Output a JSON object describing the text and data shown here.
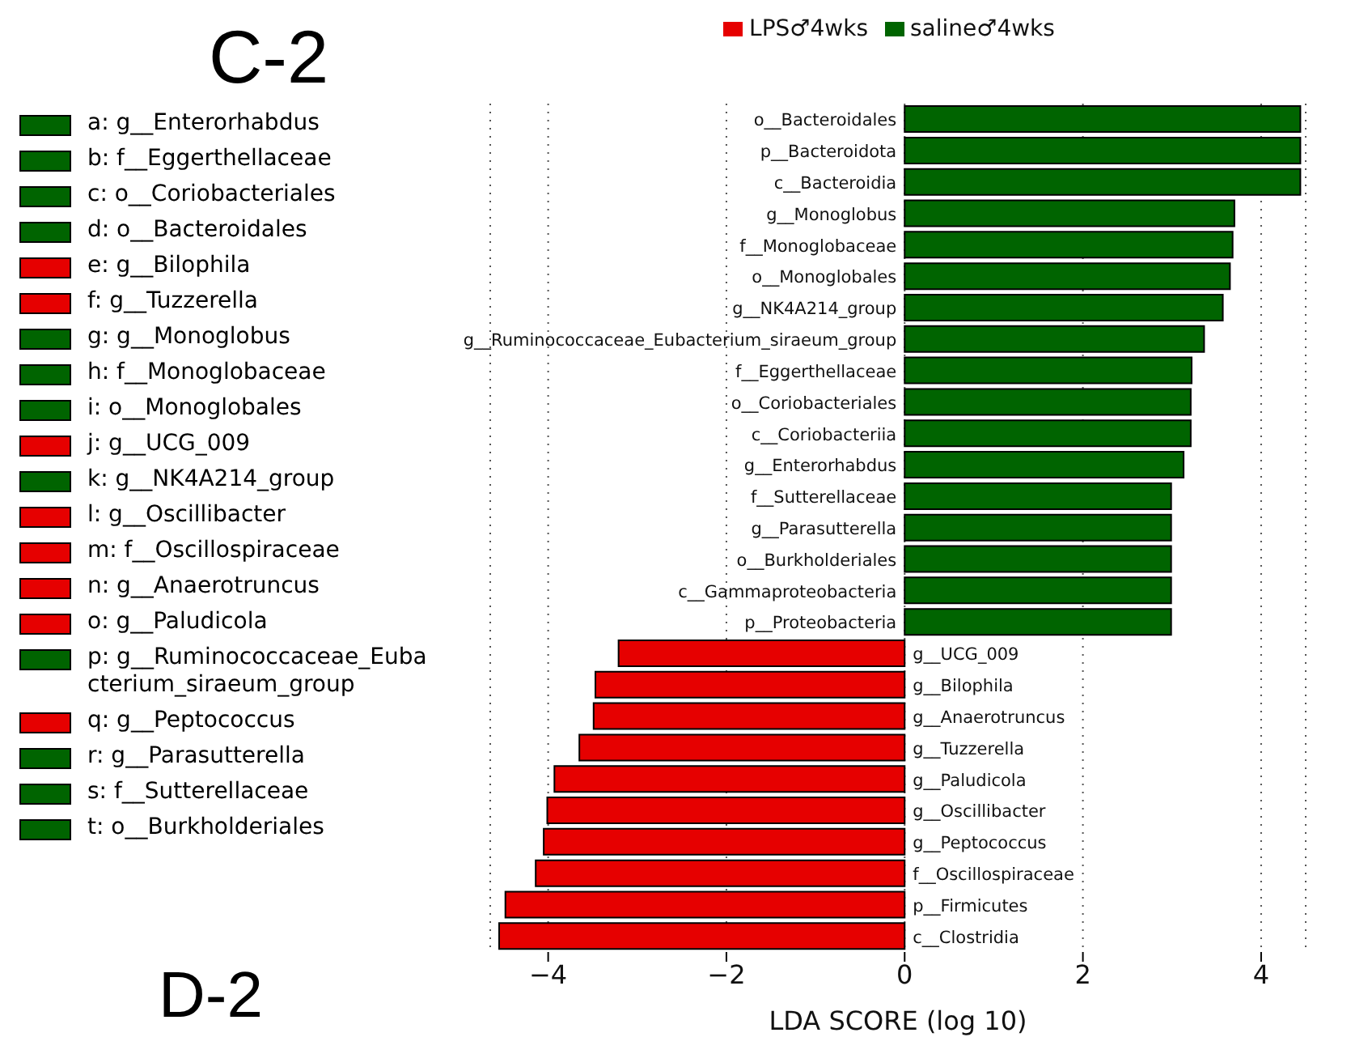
{
  "chart_data": {
    "type": "bar",
    "orientation": "horizontal",
    "stacked": true,
    "title": "C-2",
    "xlabel": "LDA SCORE (log 10)",
    "categories": [
      "o__Bacteroidales",
      "p__Bacteroidota",
      "c__Bacteroidia",
      "g__Monoglobus",
      "f__Monoglobaceae",
      "o__Monoglobales",
      "g__NK4A214_group",
      "g__Ruminococcaceae_Eubacterium_siraeum_group",
      "f__Eggerthellaceae",
      "o__Coriobacteriales",
      "c__Coriobacteriia",
      "g__Enterorhabdus",
      "f__Sutterellaceae",
      "g__Parasutterella",
      "o__Burkholderiales",
      "c__Gammaproteobacteria",
      "p__Proteobacteria",
      "g__UCG_009",
      "g__Bilophila",
      "g__Anaerotruncus",
      "g__Tuzzerella",
      "g__Paludicola",
      "g__Oscillibacter",
      "g__Peptococcus",
      "f__Oscillospiraceae",
      "p__Firmicutes",
      "c__Clostridia"
    ],
    "series": [
      {
        "name": "LPS♂4wks",
        "color": "#e60000",
        "values": [
          null,
          null,
          null,
          null,
          null,
          null,
          null,
          null,
          null,
          null,
          null,
          null,
          null,
          null,
          null,
          null,
          null,
          -3.21,
          -3.47,
          -3.49,
          -3.65,
          -3.93,
          -4.01,
          -4.05,
          -4.14,
          -4.48,
          -4.55
        ]
      },
      {
        "name": "saline♂4wks",
        "color": "#006400",
        "values": [
          4.44,
          4.44,
          4.44,
          3.7,
          3.68,
          3.65,
          3.57,
          3.36,
          3.22,
          3.21,
          3.21,
          3.13,
          2.99,
          2.99,
          2.99,
          2.99,
          2.99,
          null,
          null,
          null,
          null,
          null,
          null,
          null,
          null,
          null,
          null
        ]
      }
    ],
    "xlim": [
      -4.65,
      4.5
    ],
    "xticks": [
      -4,
      -2,
      0,
      2,
      4
    ],
    "grid": "x",
    "legend": "top",
    "annotations": [
      "a: g__Enterorhabdus",
      "b: f__Eggerthellaceae",
      "c: o__Coriobacteriales",
      "d: o__Bacteroidales",
      "e: g__Bilophila",
      "f: g__Tuzzerella",
      "g: g__Monoglobus",
      "h: f__Monoglobaceae",
      "i: o__Monoglobales",
      "j: g__UCG_009",
      "k: g__NK4A214_group",
      "l: g__Oscillibacter",
      "m: f__Oscillospiraceae",
      "n: g__Anaerotruncus",
      "o: g__Paludicola",
      "p: g__Ruminococcaceae_Eubacterium_siraeum_group",
      "q: g__Peptococcus",
      "r: g__Parasutterella",
      "s: f__Sutterellaceae",
      "t: o__Burkholderiales",
      "D-2"
    ]
  }
}
